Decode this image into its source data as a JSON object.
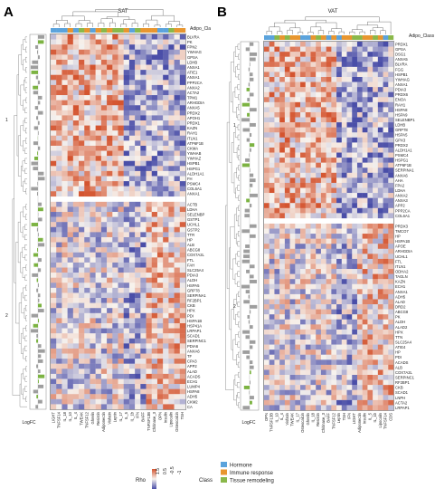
{
  "panels": [
    {
      "letter": "A",
      "title": "SAT",
      "class_label": "Adipo_Cla",
      "lfc_label": "LogFC",
      "cluster_labels": [
        "1",
        "2"
      ],
      "rows_top": [
        "BLVRA",
        "PK",
        "FPN2",
        "YWHAG",
        "GPSA",
        "LDHB",
        "ANXA1",
        "ATIE1",
        "ANXA1",
        "PPP2CA",
        "ANXA2",
        "ACTA2",
        "TPM1",
        "ARHGDIA",
        "ANXA5",
        "PRDX2",
        "APOH1",
        "PRDX1",
        "KAZN",
        "RAH1",
        "ITLN1",
        "ATP6F1B",
        "CKMA",
        "YWHAB",
        "YWHAZ",
        "HSPB1",
        "HSPG1",
        "ALDH1A1",
        "FH",
        "PSMC4",
        "COL6A1",
        "ANXA1"
      ],
      "rows_bottom": [
        "ACTB",
        "LDHA",
        "SELENBP",
        "GSTP1",
        "UCHL1",
        "GSTP2",
        "TTR",
        "HP",
        "ALB",
        "ABCG8",
        "COX7A2L",
        "FTL",
        "FAH",
        "SLC25A4",
        "PDIA3",
        "ALDH",
        "HSPA5",
        "GRP78",
        "SERPINA1",
        "RF2BP1",
        "CKB",
        "HPX",
        "PDI",
        "HSPA1B",
        "HSP41A",
        "LRPAP1",
        "SCAD1",
        "SERPINC1",
        "PDIA6",
        "ANXA6",
        "TF",
        "CPA3",
        "APP2",
        "ALAD",
        "ACADS",
        "ECH1",
        "LUMP4",
        "HSPA8",
        "ADH5",
        "CKM2",
        "CA"
      ],
      "cols": [
        "LIGHT",
        "TNFSF14",
        "IL_18",
        "IL_10",
        "IL_4",
        "TWEAK",
        "TNFSF12",
        "Ghrelin",
        "Resistin",
        "Adiponectin",
        "Visfatin",
        "Leptin",
        "IL_17",
        "IL_5",
        "IL_1b",
        "IFN",
        "BAFF",
        "TNFSF13B",
        "Chitinase_3",
        "OPN",
        "Insulin",
        "Lipocalin",
        "Osteocalcin",
        "TSH"
      ]
    },
    {
      "letter": "B",
      "title": "VAT",
      "class_label": "Adipo_Class",
      "lfc_label": "LogFC",
      "cluster_labels": [
        "1",
        "2"
      ],
      "rows_top": [
        "PRDX1",
        "GPSA",
        "DSG1",
        "ANXA5",
        "BLVRA",
        "FGG",
        "HSPB1",
        "YWHAG",
        "ANXA1",
        "PDIA3",
        "PRDX6",
        "ENOA",
        "RAH1",
        "HSPA8",
        "HSPA9",
        "SELENBP1",
        "LDHB",
        "GRP78",
        "HSPA5",
        "GPX3",
        "PRDX2",
        "ALDH1A1",
        "PSMC4",
        "HSPG1",
        "ATP6F1B",
        "SERPINA1",
        "ANXA6",
        "AHA",
        "FPA2",
        "LDHA",
        "ANXA2",
        "ANXA3",
        "APP2",
        "PPP2CA",
        "COL6A1"
      ],
      "rows_bottom": [
        "PRDX3",
        "TMCO7",
        "HP",
        "HSPA1B",
        "APOE",
        "ARHGDIA",
        "UCHL1",
        "FTL",
        "ITLN1",
        "ODHA2",
        "TAGLN",
        "KAZN",
        "ECH1",
        "ANXA1",
        "ADH5",
        "ALAD",
        "DRD2",
        "ABCG8",
        "PK",
        "ALDH",
        "ALAD2",
        "HPX",
        "TTN",
        "SLC25A4",
        "ATIE4",
        "HP",
        "PDI",
        "ACADS",
        "ALB",
        "COX7A2L",
        "SERPINC1",
        "RF2BP1",
        "CKB",
        "SCAD1",
        "LNPH",
        "ACTA2",
        "LRPAP1"
      ],
      "cols": [
        "OPN",
        "TNFSF13B",
        "IL_10",
        "IL_4",
        "Visfatin",
        "TWEAK",
        "IL_17",
        "Osteocalcin",
        "Ghrelin",
        "IL_18",
        "Resistin",
        "Chitinase_3",
        "BAFF",
        "TNFSF12",
        "Leptin",
        "TSH",
        "IFN",
        "LIGHT",
        "Adiponectin",
        "Insulin",
        "IL_5",
        "IL_1b",
        "Lipocalin",
        "TNFSF14",
        "CDS"
      ]
    }
  ],
  "legend": {
    "rho_label": "Rho",
    "rho_ticks": [
      "1.5",
      "0.5",
      "-0.5",
      "-1"
    ],
    "class_label": "Class",
    "classes": [
      {
        "name": "Hormone",
        "color": "#5ba3dc"
      },
      {
        "name": "Immune response",
        "color": "#e8962f"
      },
      {
        "name": "Tissue remodeling",
        "color": "#8ab84a"
      }
    ]
  },
  "colors": {
    "high": "#d4542f",
    "mid": "#f7f3ee",
    "low": "#4a4ea8",
    "lfc_bar": "#9e9e9e",
    "lfc_green": "#7cb342"
  }
}
